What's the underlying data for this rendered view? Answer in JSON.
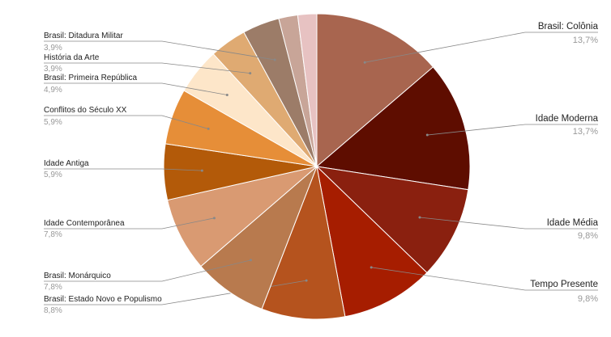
{
  "chart_data": {
    "type": "pie",
    "categories": [
      "Brasil: Colônia",
      "Idade Moderna",
      "Idade Média",
      "Tempo Presente",
      "Brasil: Estado Novo e Populismo",
      "Brasil: Monárquico",
      "Idade Contemporânea",
      "Idade Antiga",
      "Conflitos do Século XX",
      "Brasil: Primeira República",
      "História da Arte",
      "Brasil: Ditadura Militar",
      null,
      null
    ],
    "values": [
      13.7,
      13.7,
      9.8,
      9.8,
      8.8,
      7.8,
      7.8,
      5.9,
      5.9,
      4.9,
      3.9,
      3.9,
      2.0,
      2.0
    ],
    "value_labels": [
      "13,7%",
      "13,7%",
      "9,8%",
      "9,8%",
      "8,8%",
      "7,8%",
      "7,8%",
      "5,9%",
      "5,9%",
      "4,9%",
      "3,9%",
      "3,9%",
      null,
      null
    ],
    "colors": [
      "#a8654f",
      "#5e0d00",
      "#8a200f",
      "#a61d00",
      "#b5531e",
      "#b87a4e",
      "#d99a72",
      "#b35a09",
      "#e68e38",
      "#fde6c9",
      "#dfaa72",
      "#9c7c68",
      "#c8a598",
      "#e7c2c2"
    ]
  }
}
